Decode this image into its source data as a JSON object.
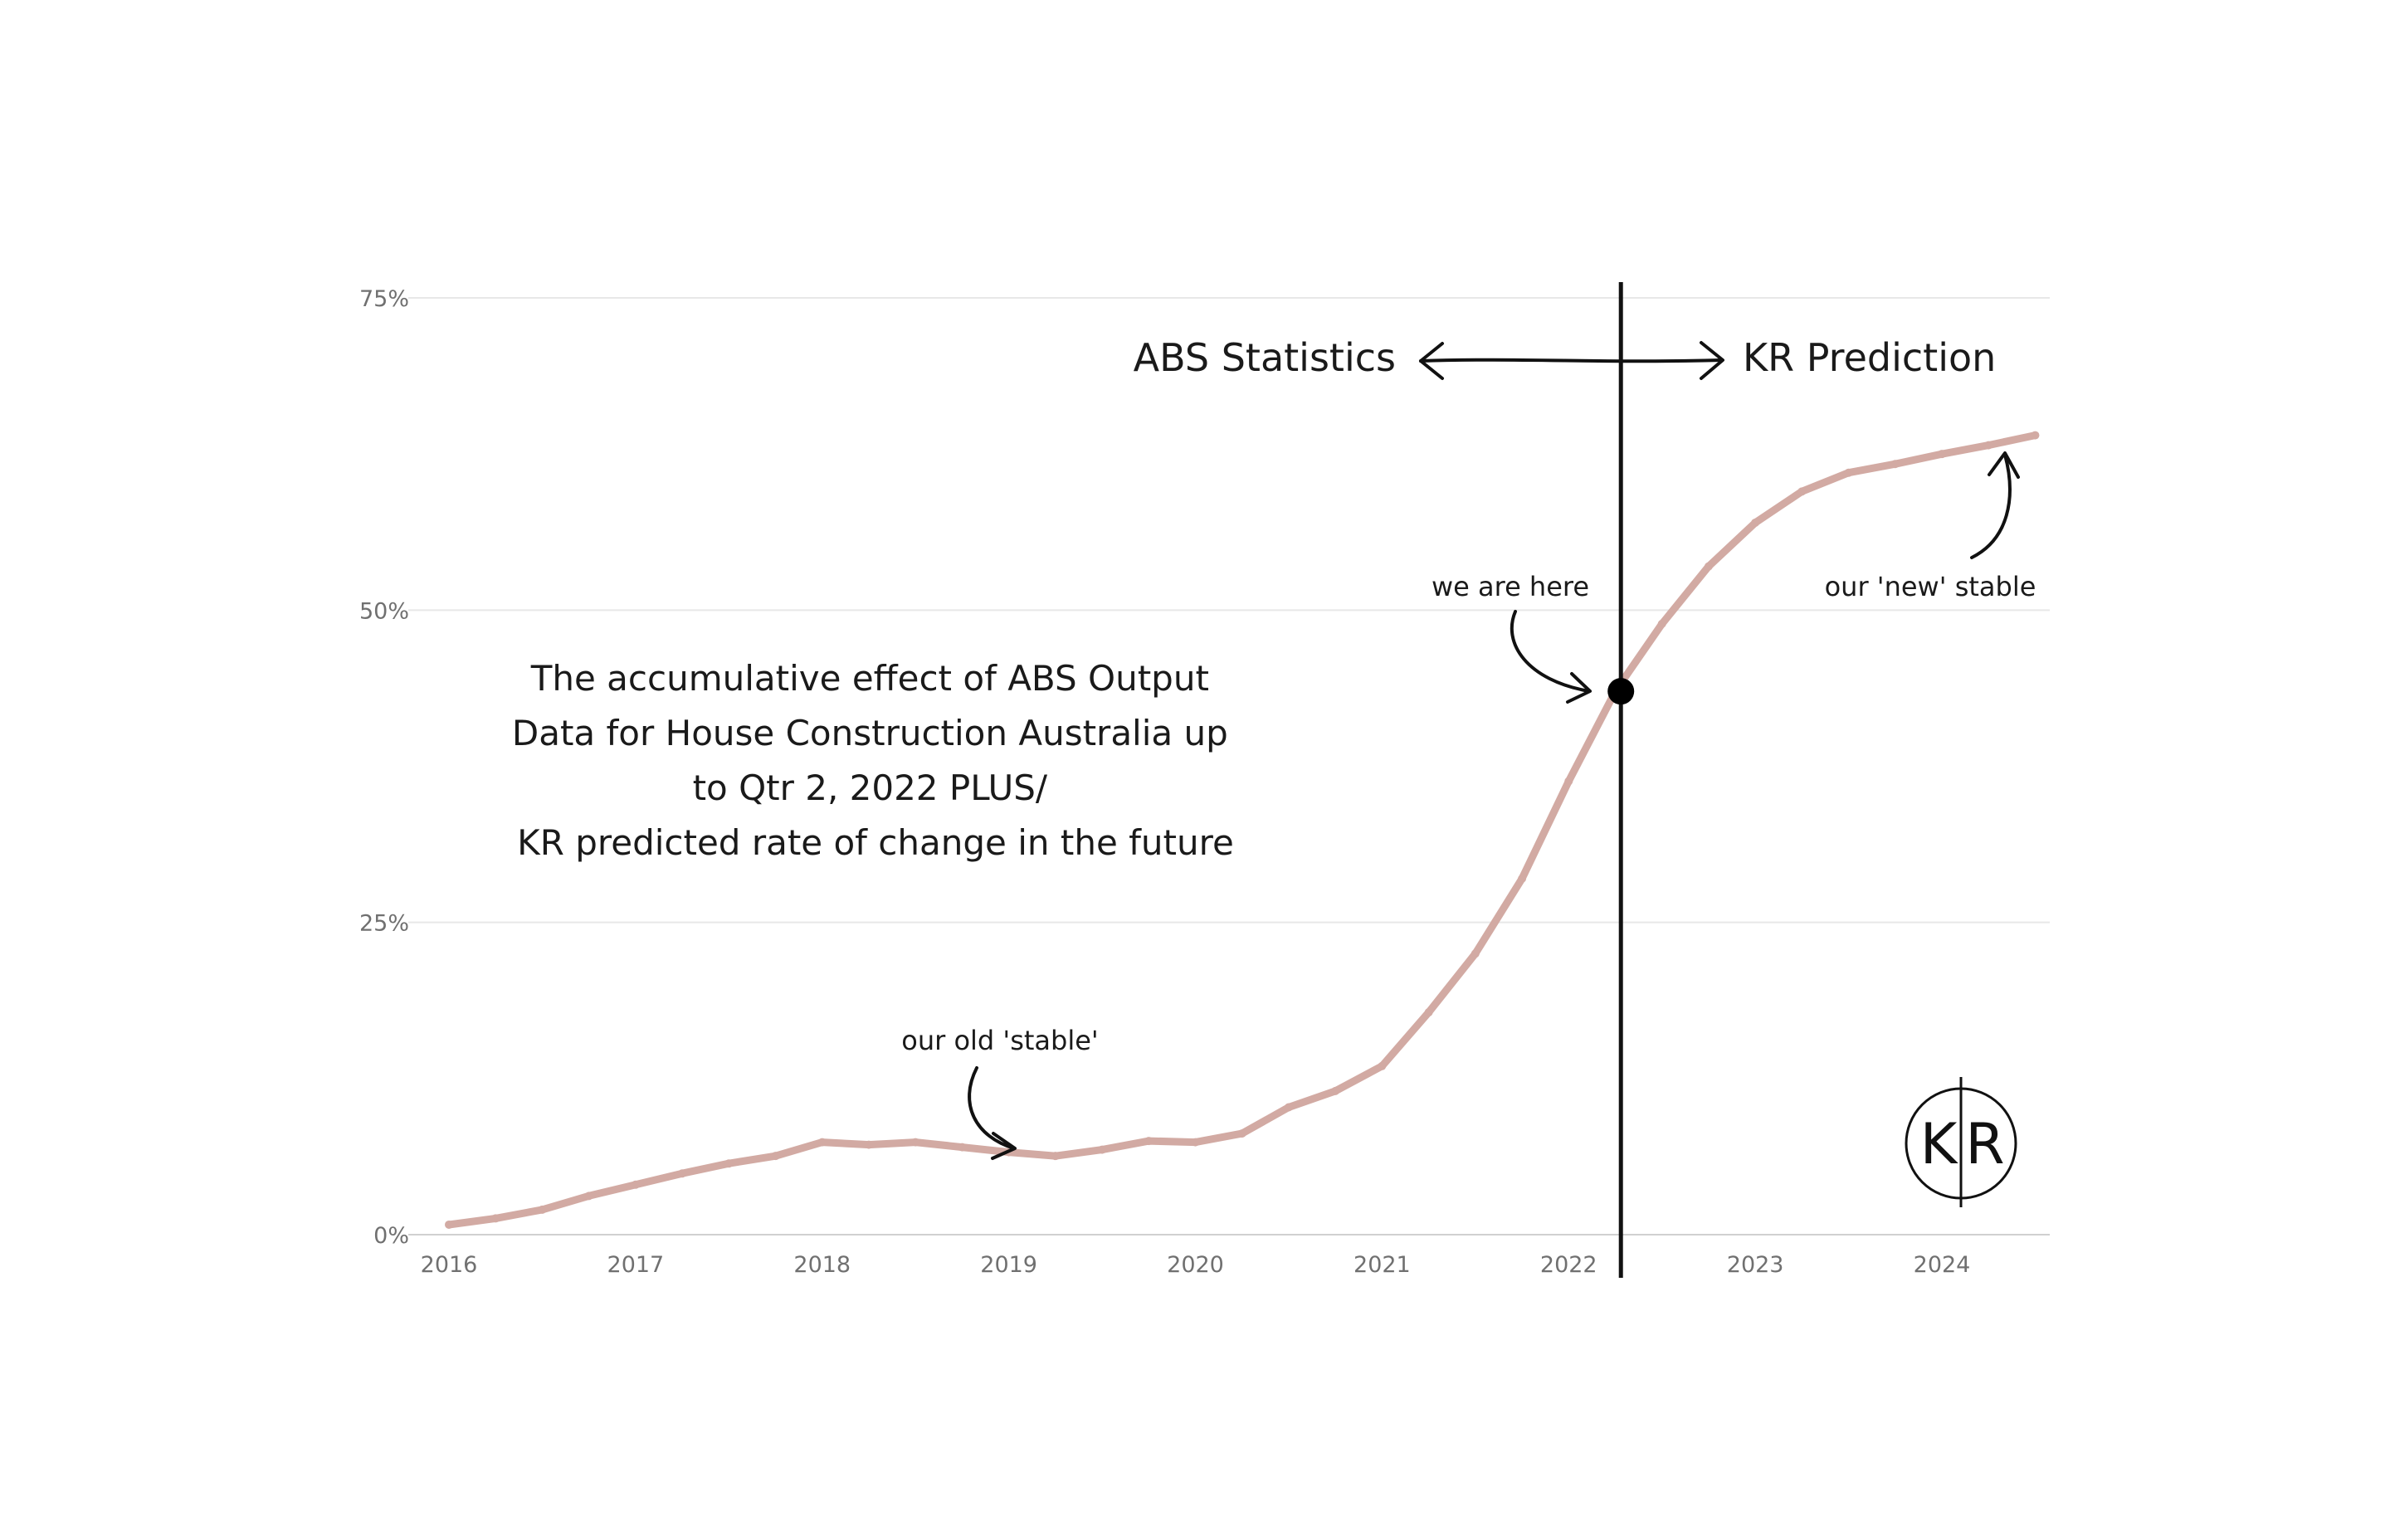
{
  "chart_data": {
    "type": "line",
    "title": "The accumulative effect of ABS Output Data for House Construction Australia up to Qtr 2, 2022 PLUS/ KR predicted rate of change in the future",
    "title_lines": [
      "The accumulative effect of ABS Output",
      "Data for House Construction Australia up",
      "to Qtr 2, 2022 PLUS/",
      "KR predicted rate of change in the future"
    ],
    "xlabel": "",
    "ylabel": "",
    "x_ticks": [
      "2016",
      "2017",
      "2018",
      "2019",
      "2020",
      "2021",
      "2022",
      "2023",
      "2024"
    ],
    "y_ticks": [
      "0%",
      "25%",
      "50%",
      "75%"
    ],
    "xlim": [
      2016,
      2024.6
    ],
    "ylim": [
      0,
      75
    ],
    "grid": "horizontal",
    "line_color": "#d2aaa3",
    "series": [
      {
        "x": [
          2016.0,
          2016.25,
          2016.5,
          2016.75,
          2017.0,
          2017.25,
          2017.5,
          2017.75,
          2018.0,
          2018.25,
          2018.5,
          2018.75,
          2019.0,
          2019.25,
          2019.5,
          2019.75,
          2020.0,
          2020.25,
          2020.5,
          2020.75,
          2021.0,
          2021.25,
          2021.5,
          2021.75,
          2022.0,
          2022.25,
          2022.5,
          2022.75,
          2023.0,
          2023.25,
          2023.5,
          2023.75,
          2024.0,
          2024.25,
          2024.5
        ],
        "values": [
          0.8,
          1.3,
          2.0,
          3.1,
          4.0,
          4.9,
          5.7,
          6.3,
          7.4,
          7.2,
          7.4,
          7.0,
          6.6,
          6.3,
          6.8,
          7.5,
          7.4,
          8.1,
          10.2,
          11.5,
          13.5,
          17.8,
          22.5,
          28.5,
          36.3,
          43.5,
          48.9,
          53.5,
          57.0,
          59.5,
          61.0,
          61.7,
          62.5,
          63.2,
          64.0
        ]
      }
    ],
    "divider_x": 2022.28,
    "marker": {
      "x": 2022.28,
      "y": 43.5
    },
    "annotations": {
      "left_label": "ABS Statistics",
      "right_label": "KR Prediction",
      "we_are_here": "we are here",
      "old_stable": "our old 'stable'",
      "new_stable": "our 'new' stable"
    },
    "logo": {
      "left": "K",
      "right": "R"
    }
  }
}
